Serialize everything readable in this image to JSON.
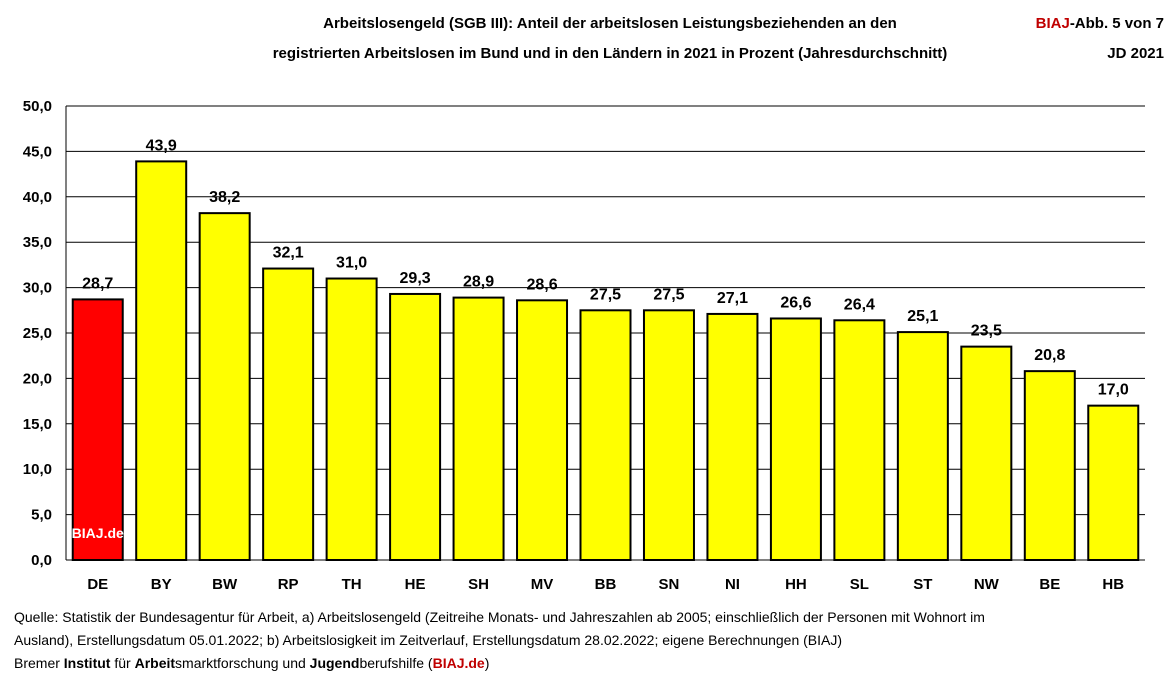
{
  "header": {
    "title_line1": "Arbeitslosengeld (SGB III): Anteil der arbeitslosen Leistungsbeziehenden an den",
    "title_line2": "registrierten Arbeitslosen im Bund und  in den Ländern in 2021 in Prozent (Jahresdurchschnitt)",
    "figure_brand": "BIAJ",
    "figure_label": "-Abb. 5 von 7",
    "figure_period": "JD 2021"
  },
  "chart_data": {
    "type": "bar",
    "categories": [
      "DE",
      "BY",
      "BW",
      "RP",
      "TH",
      "HE",
      "SH",
      "MV",
      "BB",
      "SN",
      "NI",
      "HH",
      "SL",
      "ST",
      "NW",
      "BE",
      "HB"
    ],
    "values": [
      28.7,
      43.9,
      38.2,
      32.1,
      31.0,
      29.3,
      28.9,
      28.6,
      27.5,
      27.5,
      27.1,
      26.6,
      26.4,
      25.1,
      23.5,
      20.8,
      17.0
    ],
    "value_labels": [
      "28,7",
      "43,9",
      "38,2",
      "32,1",
      "31,0",
      "29,3",
      "28,9",
      "28,6",
      "27,5",
      "27,5",
      "27,1",
      "26,6",
      "26,4",
      "25,1",
      "23,5",
      "20,8",
      "17,0"
    ],
    "bar_colors": [
      "#ff0000",
      "#ffff00",
      "#ffff00",
      "#ffff00",
      "#ffff00",
      "#ffff00",
      "#ffff00",
      "#ffff00",
      "#ffff00",
      "#ffff00",
      "#ffff00",
      "#ffff00",
      "#ffff00",
      "#ffff00",
      "#ffff00",
      "#ffff00",
      "#ffff00"
    ],
    "ylim": [
      0,
      50
    ],
    "yticks": [
      0,
      5,
      10,
      15,
      20,
      25,
      30,
      35,
      40,
      45,
      50
    ],
    "ytick_labels": [
      "0,0",
      "5,0",
      "10,0",
      "15,0",
      "20,0",
      "25,0",
      "30,0",
      "35,0",
      "40,0",
      "45,0",
      "50,0"
    ],
    "grid": true,
    "watermark": "BIAJ.de",
    "xlabel": "",
    "ylabel": ""
  },
  "footer": {
    "source_line1": "Quelle: Statistik der Bundesagentur für Arbeit, a) Arbeitslosengeld  (Zeitreihe Monats- und Jahreszahlen ab 2005; einschließlich der Personen mit Wohnort im",
    "source_line2": "Ausland), Erstellungsdatum 05.01.2022; b) Arbeitslosigkeit im Zeitverlauf, Erstellungsdatum 28.02.2022; eigene Berechnungen (BIAJ)",
    "inst_part1": "Bremer ",
    "inst_part2": "Institut",
    "inst_part3": " für ",
    "inst_part4": "Arbeit",
    "inst_part5": "smarktforschung und ",
    "inst_part6": "Jugend",
    "inst_part7": "berufshilfe (",
    "inst_part8": "BIAJ.de",
    "inst_part9": ")"
  }
}
